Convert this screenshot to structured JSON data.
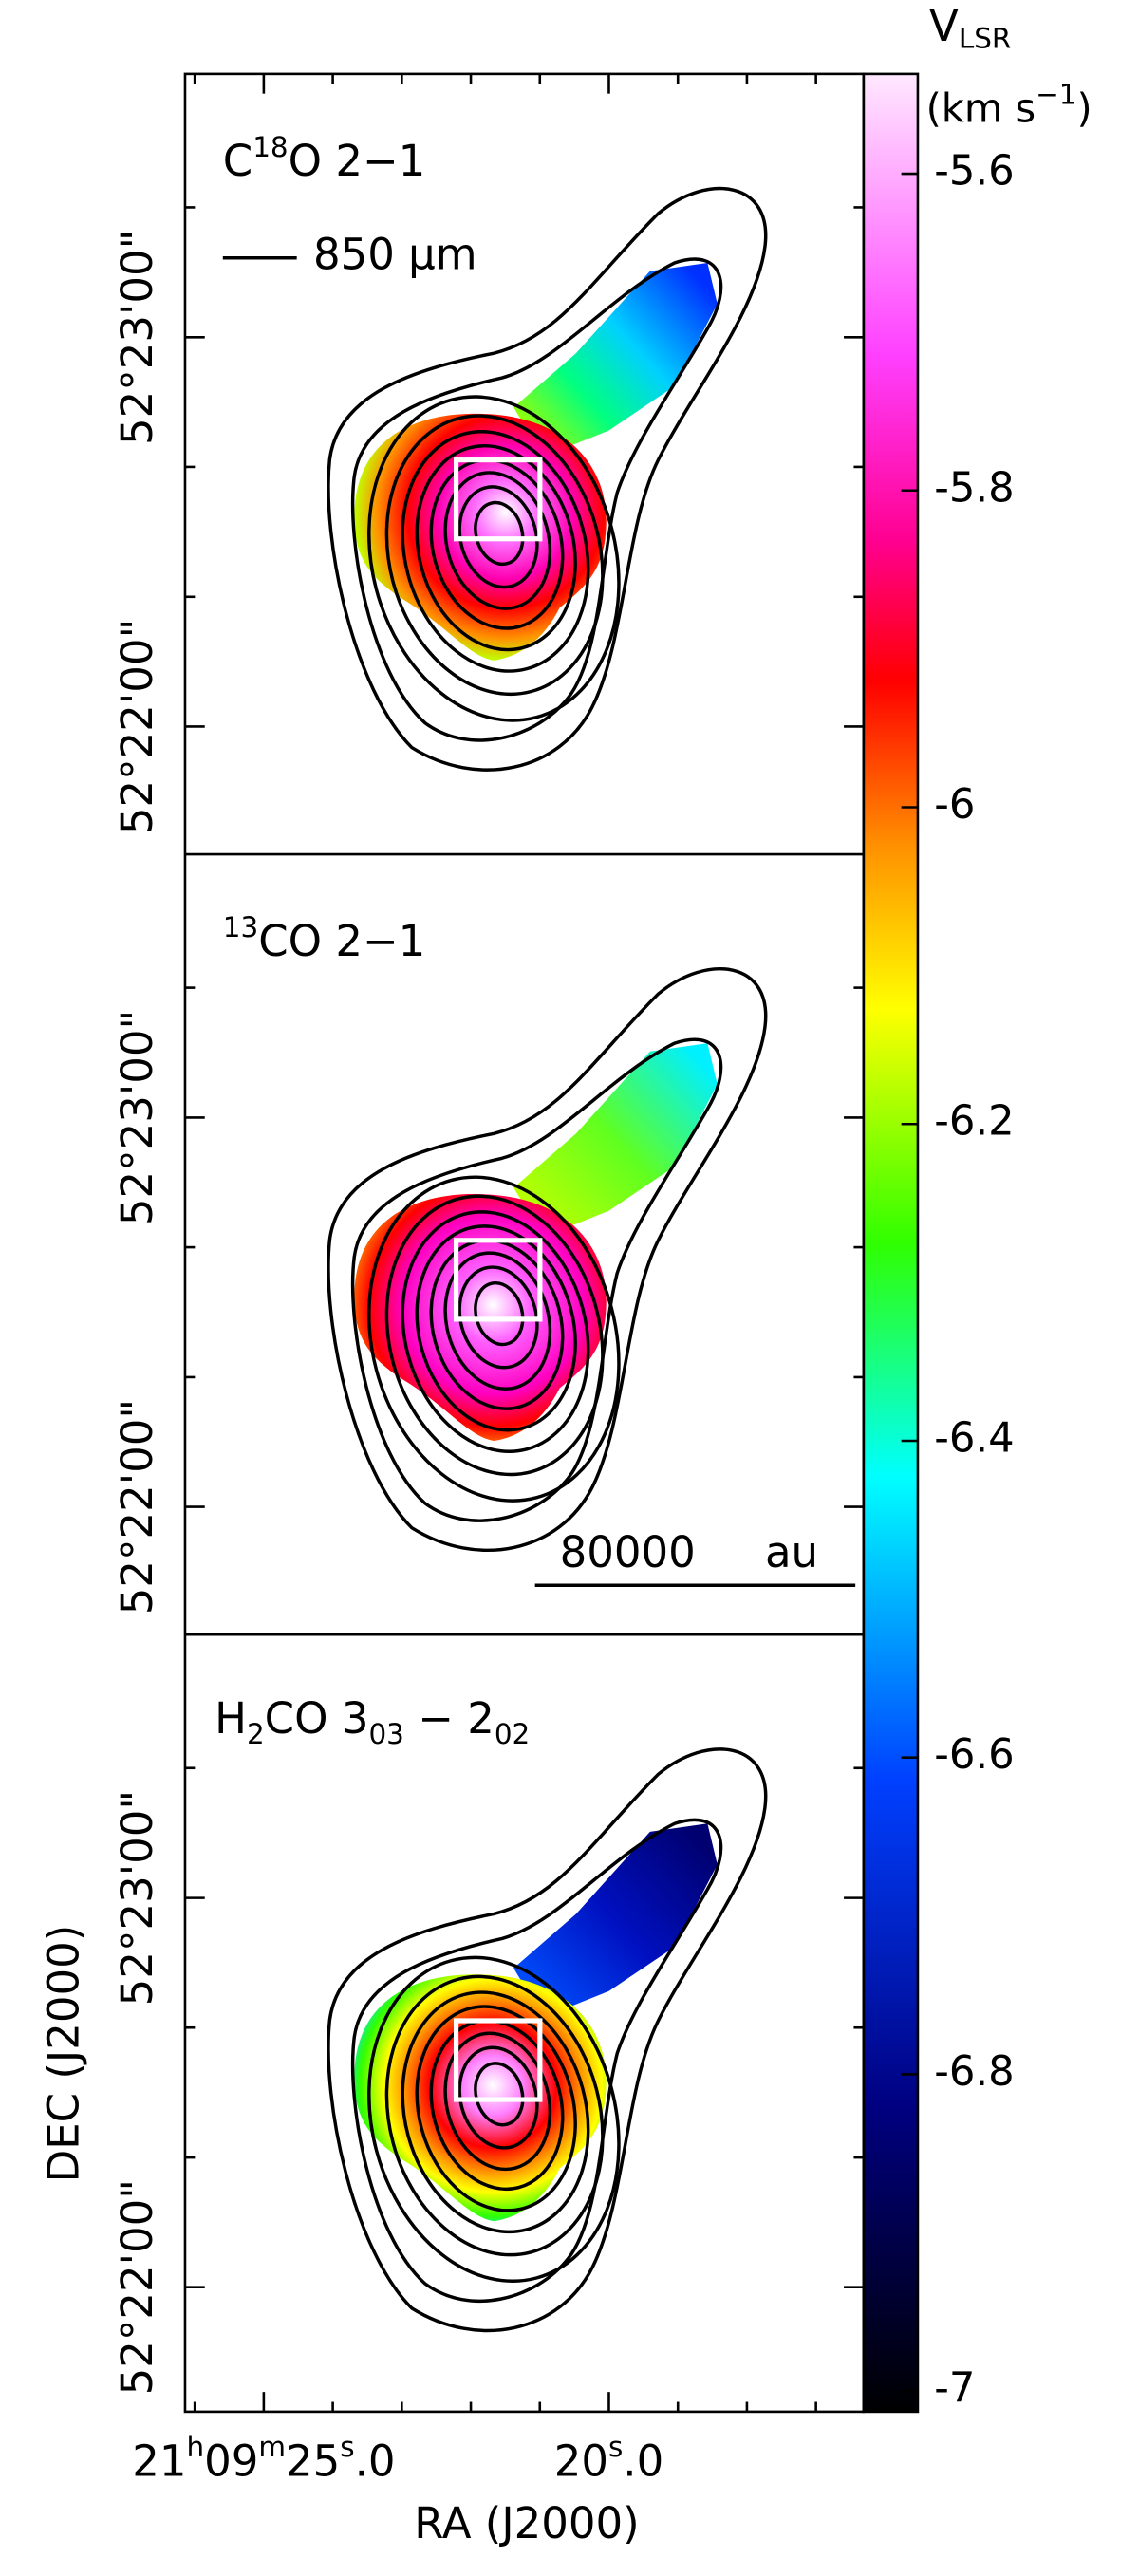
{
  "chart_data": {
    "type": "channel-maps",
    "panels": [
      {
        "label": [
          "C",
          "18",
          "O 2−1"
        ]
      },
      {
        "label": [
          "13",
          "CO 2−1"
        ]
      },
      {
        "label": [
          "H",
          "2",
          "CO 3",
          "03",
          " − 2",
          "02"
        ]
      }
    ],
    "continuum_label": "850 μm",
    "scale_bar_label": [
      "80000",
      "au"
    ],
    "xlabel": "RA (J2000)",
    "ylabel": "DEC (J2000)",
    "xlim": [
      26.14,
      16.31
    ],
    "xticks": [
      {
        "value": 25,
        "label": [
          "21",
          "h",
          "09",
          "m",
          "25",
          "s",
          ".0"
        ]
      },
      {
        "value": 20,
        "label": [
          "20",
          "s",
          ".0"
        ]
      }
    ],
    "xticks_minor": [
      26,
      24,
      23,
      22,
      21,
      19,
      18,
      17
    ],
    "ylim": [
      52.3612,
      52.3946
    ],
    "yticks": [
      {
        "value": 52.38333,
        "label": "52°23'00\""
      },
      {
        "value": 52.36667,
        "label": "52°22'00\""
      }
    ],
    "yticks_minor": [
      52.38889,
      52.37778,
      52.37222
    ],
    "colorbar": {
      "title": [
        "V",
        "LSR"
      ],
      "unit": [
        "(km s",
        "−1",
        ")"
      ],
      "ylim": [
        -7.013,
        -5.537
      ],
      "ticks": [
        -5.6,
        -5.8,
        -6,
        -6.2,
        -6.4,
        -6.6,
        -6.8,
        -7
      ]
    }
  }
}
